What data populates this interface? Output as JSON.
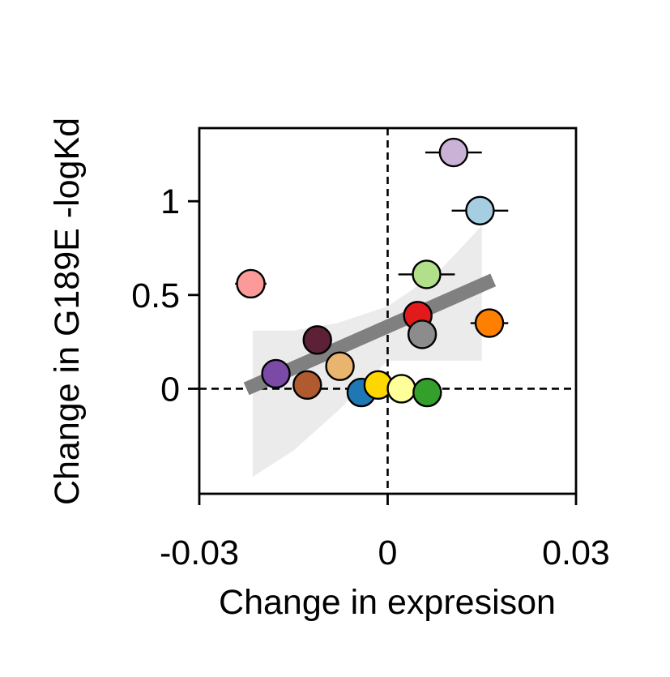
{
  "chart_data": {
    "type": "scatter",
    "title": "",
    "xlabel": "Change in expresison",
    "ylabel": "Change in G189E -logKd",
    "xlim": [
      -0.03,
      0.03
    ],
    "ylim": [
      -0.56,
      1.39
    ],
    "x_ticks": [
      {
        "value": -0.03,
        "label": "-0.03"
      },
      {
        "value": 0,
        "label": "0"
      },
      {
        "value": 0.03,
        "label": "0.03"
      }
    ],
    "y_ticks": [
      {
        "value": 0,
        "label": "0"
      },
      {
        "value": 0.5,
        "label": "0.5"
      },
      {
        "value": 1,
        "label": "1"
      }
    ],
    "reference_lines": {
      "x": 0,
      "y": 0,
      "style": "dashed",
      "color": "#000000"
    },
    "grid": false,
    "legend": "none",
    "points": [
      {
        "x": -0.0218,
        "y": 0.56,
        "xerr": 0.0025,
        "color": "#fb9a99"
      },
      {
        "x": 0.0105,
        "y": 1.26,
        "xerr": 0.0045,
        "color": "#cab2d6"
      },
      {
        "x": 0.0147,
        "y": 0.95,
        "xerr": 0.0045,
        "color": "#a6cee3"
      },
      {
        "x": 0.0062,
        "y": 0.61,
        "xerr": 0.0045,
        "color": "#b2df8a"
      },
      {
        "x": 0.0048,
        "y": 0.39,
        "xerr": 0.0,
        "color": "#e31a1c"
      },
      {
        "x": 0.0162,
        "y": 0.35,
        "xerr": 0.003,
        "color": "#ff7f00"
      },
      {
        "x": 0.0055,
        "y": 0.29,
        "xerr": 0.0,
        "color": "#8c8c8c"
      },
      {
        "x": -0.0112,
        "y": 0.26,
        "xerr": 0.0,
        "color": "#5c2136"
      },
      {
        "x": -0.0178,
        "y": 0.08,
        "xerr": 0.0,
        "color": "#7b4aa6"
      },
      {
        "x": -0.0076,
        "y": 0.12,
        "xerr": 0.0,
        "color": "#e8b46e"
      },
      {
        "x": -0.0128,
        "y": 0.02,
        "xerr": 0.0,
        "color": "#b05a2f"
      },
      {
        "x": -0.0042,
        "y": -0.02,
        "xerr": 0.0,
        "color": "#1f78b4"
      },
      {
        "x": -0.0015,
        "y": 0.02,
        "xerr": 0.0,
        "color": "#ffd700"
      },
      {
        "x": 0.0022,
        "y": 0.0,
        "xerr": 0.0,
        "color": "#ffff99"
      },
      {
        "x": 0.0063,
        "y": -0.02,
        "xerr": 0.0,
        "color": "#33a02c"
      }
    ],
    "regression": {
      "x": [
        -0.0225,
        0.0168
      ],
      "y": [
        0.0,
        0.58
      ],
      "color": "#808080",
      "band_color": "#ebebeb",
      "band_x": [
        -0.0215,
        -0.015,
        -0.008,
        0.0,
        0.008,
        0.015
      ],
      "band_lower": [
        -0.47,
        -0.33,
        -0.12,
        0.15,
        0.15,
        0.15
      ],
      "band_upper": [
        0.31,
        0.31,
        0.35,
        0.44,
        0.62,
        0.87
      ]
    }
  }
}
